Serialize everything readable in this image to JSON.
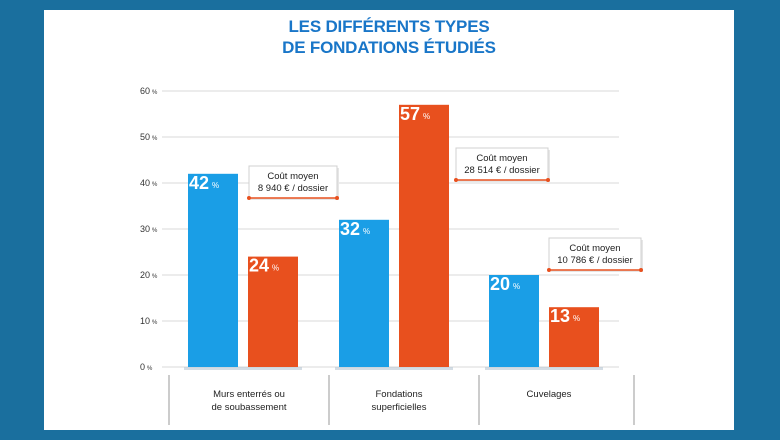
{
  "chart_data": {
    "type": "bar",
    "title_lines": [
      "LES DIFFÉRENTS TYPES",
      "DE FONDATIONS ÉTUDIÉS"
    ],
    "categories": [
      [
        "Murs enterrés ou",
        "de soubassement"
      ],
      [
        "Fondations",
        "superficielles"
      ],
      [
        "Cuvelages"
      ]
    ],
    "series": [
      {
        "values": [
          42,
          32,
          20
        ],
        "color": "#1a9ee6"
      },
      {
        "values": [
          24,
          57,
          13
        ],
        "color": "#e8501e"
      }
    ],
    "ylim": [
      0,
      60
    ],
    "yticks": [
      "0",
      "10",
      "20",
      "30",
      "40",
      "50",
      "60"
    ],
    "ytick_unit": "%",
    "value_unit": "%",
    "grid": true,
    "callouts": [
      {
        "category_index": 0,
        "lines": [
          "Coût moyen",
          "8 940 € / dossier"
        ]
      },
      {
        "category_index": 1,
        "lines": [
          "Coût moyen",
          "28 514 € / dossier"
        ]
      },
      {
        "category_index": 2,
        "lines": [
          "Coût moyen",
          "10 786 € / dossier"
        ]
      }
    ],
    "callout_accent": "#e8501e"
  }
}
